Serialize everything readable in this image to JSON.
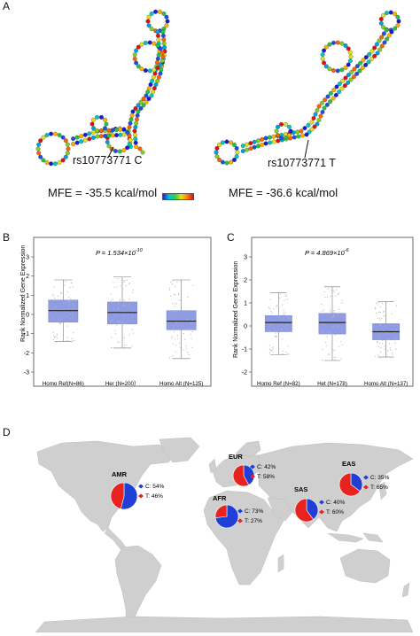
{
  "panels": {
    "A": {
      "label": "A",
      "left": {
        "snp": "rs10773771 C",
        "mfe": "MFE = -35.5 kcal/mol"
      },
      "right": {
        "snp": "rs10773771 T",
        "mfe": "MFE = -36.6 kcal/mol"
      }
    },
    "B": {
      "label": "B",
      "pvalue": "P = 1.534×10",
      "pexp": "-10",
      "ylabel": "Rank Normalized Gene Expression",
      "chart_data": {
        "type": "box",
        "categories": [
          "Homo Ref(N=86)",
          "Her (N=200）",
          "Homo Alt (N=125)"
        ],
        "ylim": [
          -3,
          3
        ],
        "yticks": [
          -3,
          -2,
          -1,
          0,
          1,
          2,
          3
        ],
        "boxes": [
          {
            "q1": -0.4,
            "median": 0.2,
            "q3": 0.75,
            "whisker_low": -1.4,
            "whisker_high": 1.8
          },
          {
            "q1": -0.5,
            "median": 0.1,
            "q3": 0.65,
            "whisker_low": -1.75,
            "whisker_high": 1.95
          },
          {
            "q1": -0.8,
            "median": -0.35,
            "q3": 0.2,
            "whisker_low": -2.3,
            "whisker_high": 1.8
          }
        ]
      }
    },
    "C": {
      "label": "C",
      "pvalue": "P = 4.869×10",
      "pexp": "-6",
      "ylabel": "Rank Normalized Gene Expression",
      "chart_data": {
        "type": "box",
        "categories": [
          "Homo Ref (N=82)",
          "Het (N=178)",
          "Homo Alt (N=137)"
        ],
        "ylim": [
          -2,
          3
        ],
        "yticks": [
          -2,
          -1,
          0,
          1,
          2,
          3
        ],
        "boxes": [
          {
            "q1": -0.25,
            "median": 0.15,
            "q3": 0.45,
            "whisker_low": -1.25,
            "whisker_high": 1.45
          },
          {
            "q1": -0.35,
            "median": 0.15,
            "q3": 0.55,
            "whisker_low": -1.5,
            "whisker_high": 1.7
          },
          {
            "q1": -0.6,
            "median": -0.25,
            "q3": 0.1,
            "whisker_low": -1.35,
            "whisker_high": 1.05
          }
        ]
      }
    },
    "D": {
      "label": "D",
      "colors": {
        "C": "#1f3fd6",
        "T": "#e8231f",
        "land": "#cfcfcf"
      },
      "chart_data": {
        "type": "pie",
        "regions": [
          {
            "name": "AMR",
            "C": 54,
            "T": 46,
            "c_label": "C: 54%",
            "t_label": "T: 46%"
          },
          {
            "name": "EUR",
            "C": 42,
            "T": 58,
            "c_label": "C: 42%",
            "t_label": "T: 58%"
          },
          {
            "name": "AFR",
            "C": 73,
            "T": 27,
            "c_label": "C: 73%",
            "t_label": "T: 27%"
          },
          {
            "name": "SAS",
            "C": 40,
            "T": 60,
            "c_label": "C: 40%",
            "t_label": "T: 60%"
          },
          {
            "name": "EAS",
            "C": 35,
            "T": 65,
            "c_label": "C: 35%",
            "t_label": "T: 65%"
          }
        ]
      }
    }
  }
}
